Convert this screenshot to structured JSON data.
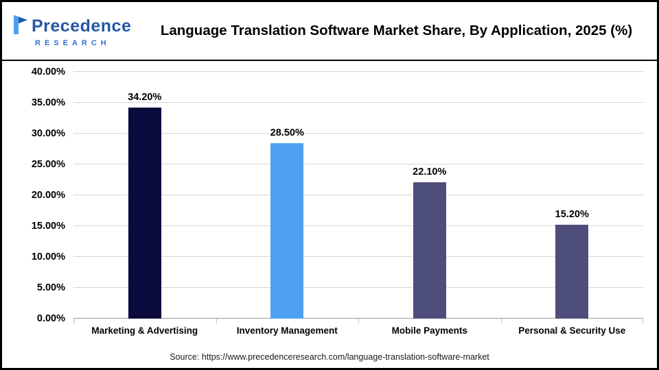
{
  "header": {
    "title": "Language Translation Software Market Share, By Application, 2025 (%)",
    "logo": {
      "name": "Precedence",
      "subname": "RESEARCH"
    }
  },
  "chart_data": {
    "type": "bar",
    "title": "Language Translation Software Market Share, By Application, 2025 (%)",
    "categories": [
      "Marketing & Advertising",
      "Inventory Management",
      "Mobile Payments",
      "Personal & Security Use"
    ],
    "values": [
      34.2,
      28.5,
      22.1,
      15.2
    ],
    "value_labels": [
      "34.20%",
      "28.50%",
      "22.10%",
      "15.20%"
    ],
    "bar_colors": [
      "#0a0a3c",
      "#4da1f0",
      "#4e4e7d",
      "#4e4e7d"
    ],
    "xlabel": "",
    "ylabel": "",
    "ylim": [
      0,
      40
    ],
    "ytick_step": 5,
    "ytick_labels": [
      "0.00%",
      "5.00%",
      "10.00%",
      "15.00%",
      "20.00%",
      "25.00%",
      "30.00%",
      "35.00%",
      "40.00%"
    ],
    "grid": true,
    "legend": "none"
  },
  "footer": {
    "source": "Source: https://www.precedenceresearch.com/language-translation-software-market"
  }
}
